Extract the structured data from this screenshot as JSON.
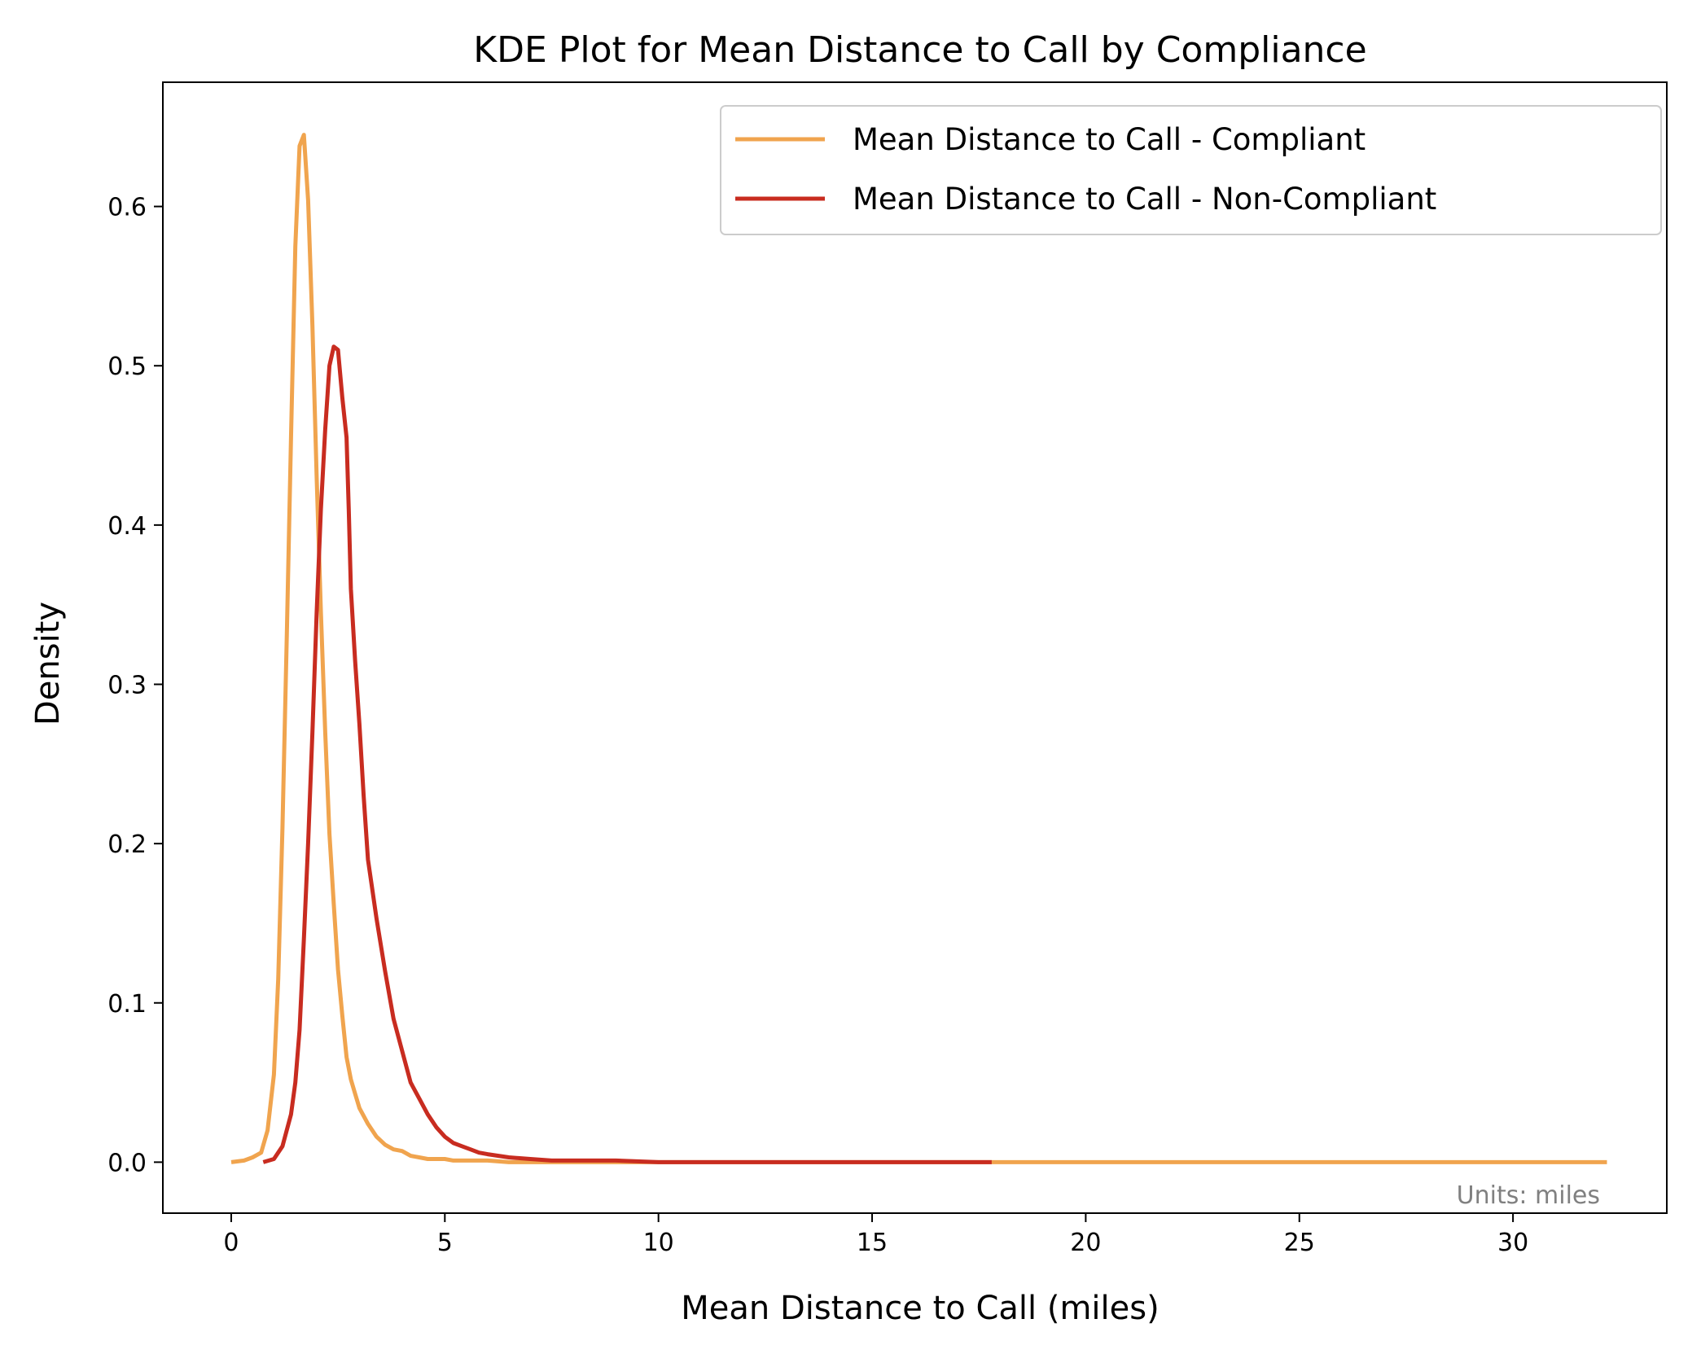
{
  "chart_data": {
    "type": "line",
    "title": "KDE Plot for Mean Distance to Call by Compliance",
    "xlabel": "Mean Distance to Call (miles)",
    "ylabel": "Density",
    "xlim": [
      -1.6,
      33.6
    ],
    "ylim": [
      -0.032,
      0.678
    ],
    "xticks": [
      0,
      5,
      10,
      15,
      20,
      25,
      30
    ],
    "xtick_labels": [
      "0",
      "5",
      "10",
      "15",
      "20",
      "25",
      "30"
    ],
    "yticks": [
      0.0,
      0.1,
      0.2,
      0.3,
      0.4,
      0.5,
      0.6
    ],
    "ytick_labels": [
      "0.0",
      "0.1",
      "0.2",
      "0.3",
      "0.4",
      "0.5",
      "0.6"
    ],
    "grid": false,
    "legend_position": "top-right",
    "annotation": "Units: miles",
    "series": [
      {
        "name": "Mean Distance to Call - Compliant",
        "color": "#f0a44e",
        "x": [
          0.0,
          0.3,
          0.5,
          0.7,
          0.85,
          1.0,
          1.1,
          1.2,
          1.3,
          1.4,
          1.5,
          1.6,
          1.7,
          1.8,
          1.9,
          2.0,
          2.1,
          2.2,
          2.3,
          2.4,
          2.5,
          2.6,
          2.7,
          2.8,
          2.9,
          3.0,
          3.2,
          3.4,
          3.6,
          3.8,
          4.0,
          4.2,
          4.4,
          4.6,
          4.8,
          5.0,
          5.2,
          5.4,
          5.6,
          6.0,
          6.5,
          7.0,
          7.5,
          8.0,
          8.5,
          9.0,
          10.0,
          12.0,
          15.0,
          18.0,
          20.0,
          25.0,
          30.0,
          32.2
        ],
        "y": [
          0.0,
          0.001,
          0.003,
          0.006,
          0.02,
          0.055,
          0.115,
          0.21,
          0.33,
          0.455,
          0.575,
          0.638,
          0.645,
          0.604,
          0.525,
          0.43,
          0.345,
          0.27,
          0.206,
          0.162,
          0.121,
          0.092,
          0.066,
          0.052,
          0.043,
          0.034,
          0.024,
          0.016,
          0.011,
          0.008,
          0.007,
          0.004,
          0.003,
          0.002,
          0.002,
          0.002,
          0.001,
          0.001,
          0.001,
          0.001,
          0.0,
          0.0,
          0.0,
          0.0,
          0.0,
          0.0,
          0.0,
          0.0,
          0.0,
          0.0,
          0.0,
          0.0,
          0.0,
          0.0
        ]
      },
      {
        "name": "Mean Distance to Call - Non-Compliant",
        "color": "#c82c20",
        "x": [
          0.75,
          1.0,
          1.2,
          1.4,
          1.5,
          1.6,
          1.7,
          1.8,
          1.9,
          2.0,
          2.1,
          2.2,
          2.3,
          2.4,
          2.5,
          2.6,
          2.7,
          2.75,
          2.8,
          2.9,
          3.0,
          3.1,
          3.2,
          3.4,
          3.6,
          3.8,
          4.0,
          4.2,
          4.4,
          4.6,
          4.8,
          5.0,
          5.2,
          5.4,
          5.6,
          5.8,
          6.0,
          6.5,
          7.0,
          7.5,
          8.0,
          8.5,
          9.0,
          10.0,
          12.0,
          15.0,
          17.8
        ],
        "y": [
          0.0,
          0.002,
          0.01,
          0.03,
          0.05,
          0.083,
          0.14,
          0.2,
          0.27,
          0.345,
          0.41,
          0.46,
          0.5,
          0.512,
          0.51,
          0.48,
          0.455,
          0.41,
          0.36,
          0.315,
          0.275,
          0.23,
          0.19,
          0.153,
          0.12,
          0.09,
          0.07,
          0.05,
          0.04,
          0.03,
          0.022,
          0.016,
          0.012,
          0.01,
          0.008,
          0.006,
          0.005,
          0.003,
          0.002,
          0.001,
          0.001,
          0.001,
          0.001,
          0.0,
          0.0,
          0.0,
          0.0
        ]
      }
    ]
  }
}
